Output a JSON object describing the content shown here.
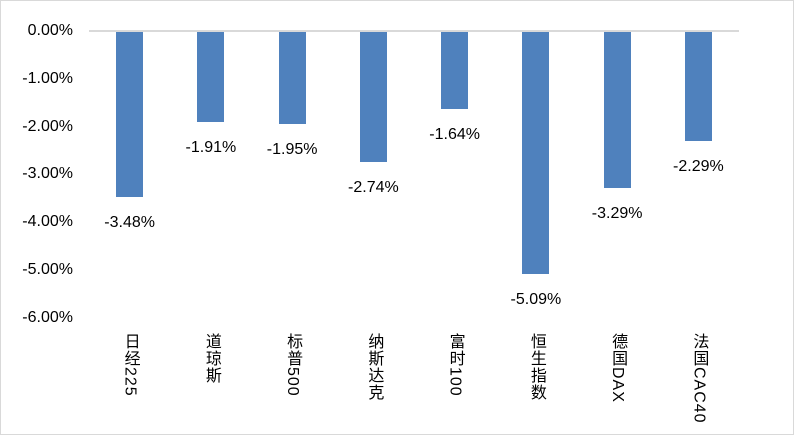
{
  "chart_data": {
    "type": "bar",
    "categories": [
      "日经225",
      "道琼斯",
      "标普500",
      "纳斯达克",
      "富时100",
      "恒生指数",
      "德国DAX",
      "法国CAC40"
    ],
    "values": [
      -3.48,
      -1.91,
      -1.95,
      -2.74,
      -1.64,
      -5.09,
      -3.29,
      -2.29
    ],
    "data_labels": [
      "-3.48%",
      "-1.91%",
      "-1.95%",
      "-2.74%",
      "-1.64%",
      "-5.09%",
      "-3.29%",
      "-2.29%"
    ],
    "y_ticks": [
      "0.00%",
      "-1.00%",
      "-2.00%",
      "-3.00%",
      "-4.00%",
      "-5.00%",
      "-6.00%"
    ],
    "ylim": [
      -6,
      0
    ],
    "grid": false,
    "legend": false,
    "bar_color": "#4F81BD",
    "axis_line_color": "#D9D9D9",
    "text_color": "#000000"
  }
}
